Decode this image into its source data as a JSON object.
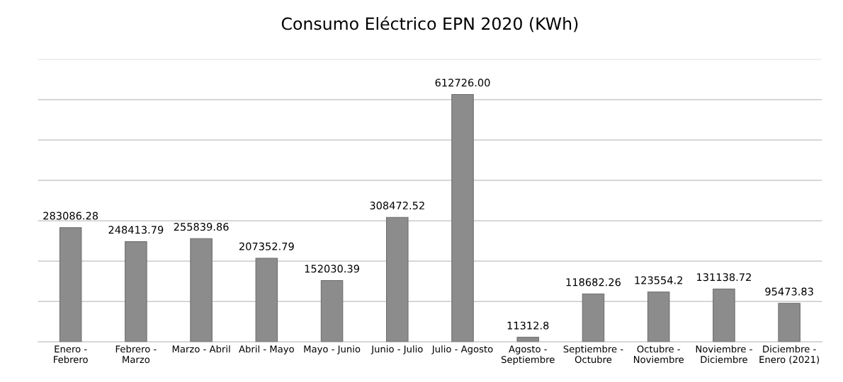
{
  "chart_data": {
    "type": "bar",
    "title": "Consumo Eléctrico EPN 2020 (KWh)",
    "categories": [
      "Enero -\nFebrero",
      "Febrero -\nMarzo",
      "Marzo - Abril",
      "Abril - Mayo",
      "Mayo - Junio",
      "Junio - Julio",
      "Julio - Agosto",
      "Agosto -\nSeptiembre",
      "Septiembre -\nOctubre",
      "Octubre -\nNoviembre",
      "Noviembre -\nDiciembre",
      "Diciembre -\nEnero (2021)"
    ],
    "values": [
      283086.28,
      248413.79,
      255839.86,
      207352.79,
      152030.39,
      308472.52,
      612726.0,
      11312.8,
      118682.26,
      123554.2,
      131138.72,
      95473.83
    ],
    "value_labels": [
      "283086.28",
      "248413.79",
      "255839.86",
      "207352.79",
      "152030.39",
      "308472.52",
      "612726.00",
      "11312.8",
      "118682.26",
      "123554.2",
      "131138.72",
      "95473.83"
    ],
    "color": "#8c8c8c",
    "ylim": [
      0,
      700000
    ],
    "yticks": [
      {
        "value": 0,
        "label": null
      },
      {
        "value": 100000,
        "label": null
      },
      {
        "value": 200000,
        "label": null
      },
      {
        "value": 300000,
        "label": null
      },
      {
        "value": 400000,
        "label": null
      },
      {
        "value": 500000,
        "label": null
      },
      {
        "value": 600000,
        "label": null
      },
      {
        "value": 700000,
        "label": null
      }
    ],
    "grid": "y",
    "tick_labels": "x"
  }
}
